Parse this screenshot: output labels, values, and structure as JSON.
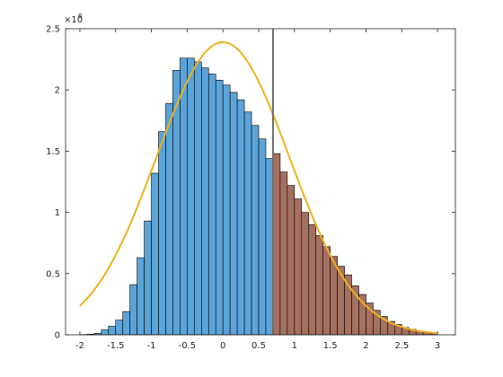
{
  "chart_data": {
    "type": "bar",
    "title": "",
    "xlabel": "",
    "ylabel": "",
    "xlim": [
      -2.2,
      3.25
    ],
    "ylim": [
      0,
      2.5
    ],
    "y_exponent_label": "×10",
    "y_exponent_power": "6",
    "xticks": [
      -2,
      -1.5,
      -1,
      -0.5,
      0,
      0.5,
      1,
      1.5,
      2,
      2.5,
      3
    ],
    "xtick_labels": [
      "-2",
      "-1.5",
      "-1",
      "-0.5",
      "0",
      "0.5",
      "1",
      "1.5",
      "2",
      "2.5",
      "3"
    ],
    "yticks": [
      0,
      0.5,
      1,
      1.5,
      2,
      2.5
    ],
    "ytick_labels": [
      "0",
      "0.5",
      "1",
      "1.5",
      "2",
      "2.5"
    ],
    "grid": false,
    "bin_width": 0.1,
    "threshold": 0.7,
    "series": [
      {
        "color": "#5aa4d8",
        "bins": [
          {
            "x": -1.95,
            "y": 0.002
          },
          {
            "x": -1.85,
            "y": 0.005
          },
          {
            "x": -1.75,
            "y": 0.012
          },
          {
            "x": -1.65,
            "y": 0.04
          },
          {
            "x": -1.55,
            "y": 0.07
          },
          {
            "x": -1.45,
            "y": 0.12
          },
          {
            "x": -1.35,
            "y": 0.19
          },
          {
            "x": -1.25,
            "y": 0.41
          },
          {
            "x": -1.15,
            "y": 0.63
          },
          {
            "x": -1.05,
            "y": 0.93
          },
          {
            "x": -0.95,
            "y": 1.32
          },
          {
            "x": -0.85,
            "y": 1.66
          },
          {
            "x": -0.75,
            "y": 1.89
          },
          {
            "x": -0.65,
            "y": 2.16
          },
          {
            "x": -0.55,
            "y": 2.26
          },
          {
            "x": -0.45,
            "y": 2.26
          },
          {
            "x": -0.35,
            "y": 2.23
          },
          {
            "x": -0.25,
            "y": 2.18
          },
          {
            "x": -0.15,
            "y": 2.13
          },
          {
            "x": -0.05,
            "y": 2.08
          },
          {
            "x": 0.05,
            "y": 2.04
          },
          {
            "x": 0.15,
            "y": 1.98
          },
          {
            "x": 0.25,
            "y": 1.92
          },
          {
            "x": 0.35,
            "y": 1.82
          },
          {
            "x": 0.45,
            "y": 1.71
          },
          {
            "x": 0.55,
            "y": 1.6
          },
          {
            "x": 0.65,
            "y": 1.44
          }
        ]
      },
      {
        "color": "#a5705f",
        "bins": [
          {
            "x": 0.75,
            "y": 1.48
          },
          {
            "x": 0.85,
            "y": 1.33
          },
          {
            "x": 0.95,
            "y": 1.22
          },
          {
            "x": 1.05,
            "y": 1.11
          },
          {
            "x": 1.15,
            "y": 1.0
          },
          {
            "x": 1.25,
            "y": 0.9
          },
          {
            "x": 1.35,
            "y": 0.81
          },
          {
            "x": 1.45,
            "y": 0.72
          },
          {
            "x": 1.55,
            "y": 0.64
          },
          {
            "x": 1.65,
            "y": 0.56
          },
          {
            "x": 1.75,
            "y": 0.49
          },
          {
            "x": 1.85,
            "y": 0.4
          },
          {
            "x": 1.95,
            "y": 0.33
          },
          {
            "x": 2.05,
            "y": 0.26
          },
          {
            "x": 2.15,
            "y": 0.2
          },
          {
            "x": 2.25,
            "y": 0.15
          },
          {
            "x": 2.35,
            "y": 0.11
          },
          {
            "x": 2.45,
            "y": 0.085
          },
          {
            "x": 2.55,
            "y": 0.06
          },
          {
            "x": 2.65,
            "y": 0.045
          },
          {
            "x": 2.75,
            "y": 0.03
          },
          {
            "x": 2.85,
            "y": 0.02
          },
          {
            "x": 2.95,
            "y": 0.012
          }
        ]
      }
    ],
    "curve": {
      "color": "#edb120",
      "x_range": [
        -2,
        3
      ],
      "mean": 0,
      "sd": 0.93,
      "peak": 2.39
    },
    "vline": {
      "x": 0.7,
      "color": "#6e6e6e"
    }
  }
}
